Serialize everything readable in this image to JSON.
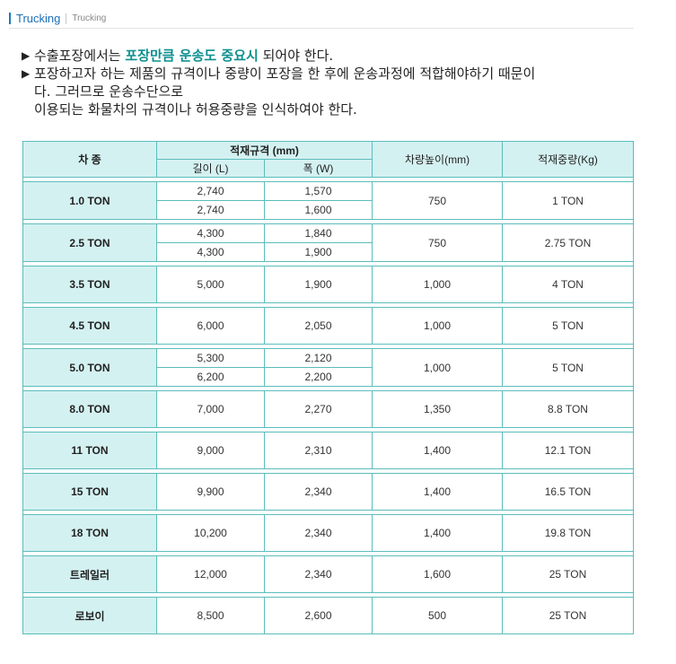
{
  "header": {
    "title": "Trucking",
    "subtitle": "Trucking"
  },
  "intro": {
    "line1_pre": "수출포장에서는 ",
    "line1_highlight": "포장만큼 운송도 중요시",
    "line1_post": " 되어야 한다.",
    "line2": "포장하고자 하는 제품의 규격이나 중량이 포장을 한 후에 운송과정에 적합해야하기 때문이",
    "line3": "다. 그러므로 운송수단으로",
    "line4": "이용되는 화물차의 규격이나 허용중량을 인식하여야 한다.",
    "bullet": "▶"
  },
  "table": {
    "headers": {
      "type": "차  종",
      "spec": "적재규격 (mm)",
      "length": "길이 (L)",
      "width": "폭 (W)",
      "height": "차량높이(mm)",
      "load": "적재중량(Kg)"
    },
    "rows": [
      {
        "type": "1.0 TON",
        "specs": [
          {
            "length": "2,740",
            "width": "1,570"
          },
          {
            "length": "2,740",
            "width": "1,600"
          }
        ],
        "height": "750",
        "load": "1 TON"
      },
      {
        "type": "2.5 TON",
        "specs": [
          {
            "length": "4,300",
            "width": "1,840"
          },
          {
            "length": "4,300",
            "width": "1,900"
          }
        ],
        "height": "750",
        "load": "2.75 TON"
      },
      {
        "type": "3.5 TON",
        "specs": [
          {
            "length": "5,000",
            "width": "1,900"
          }
        ],
        "height": "1,000",
        "load": "4 TON"
      },
      {
        "type": "4.5 TON",
        "specs": [
          {
            "length": "6,000",
            "width": "2,050"
          }
        ],
        "height": "1,000",
        "load": "5 TON"
      },
      {
        "type": "5.0 TON",
        "specs": [
          {
            "length": "5,300",
            "width": "2,120"
          },
          {
            "length": "6,200",
            "width": "2,200"
          }
        ],
        "height": "1,000",
        "load": "5 TON"
      },
      {
        "type": "8.0 TON",
        "specs": [
          {
            "length": "7,000",
            "width": "2,270"
          }
        ],
        "height": "1,350",
        "load": "8.8 TON"
      },
      {
        "type": "11 TON",
        "specs": [
          {
            "length": "9,000",
            "width": "2,310"
          }
        ],
        "height": "1,400",
        "load": "12.1 TON"
      },
      {
        "type": "15 TON",
        "specs": [
          {
            "length": "9,900",
            "width": "2,340"
          }
        ],
        "height": "1,400",
        "load": "16.5 TON"
      },
      {
        "type": "18 TON",
        "specs": [
          {
            "length": "10,200",
            "width": "2,340"
          }
        ],
        "height": "1,400",
        "load": "19.8 TON"
      },
      {
        "type": "트레일러",
        "specs": [
          {
            "length": "12,000",
            "width": "2,340"
          }
        ],
        "height": "1,600",
        "load": "25 TON"
      },
      {
        "type": "로보이",
        "specs": [
          {
            "length": "8,500",
            "width": "2,600"
          }
        ],
        "height": "500",
        "load": "25 TON"
      }
    ]
  },
  "colors": {
    "accent": "#0e8f8f",
    "header_bg": "#d4f1f1",
    "border": "#5cbcbc",
    "title_blue": "#1a6fb5"
  }
}
